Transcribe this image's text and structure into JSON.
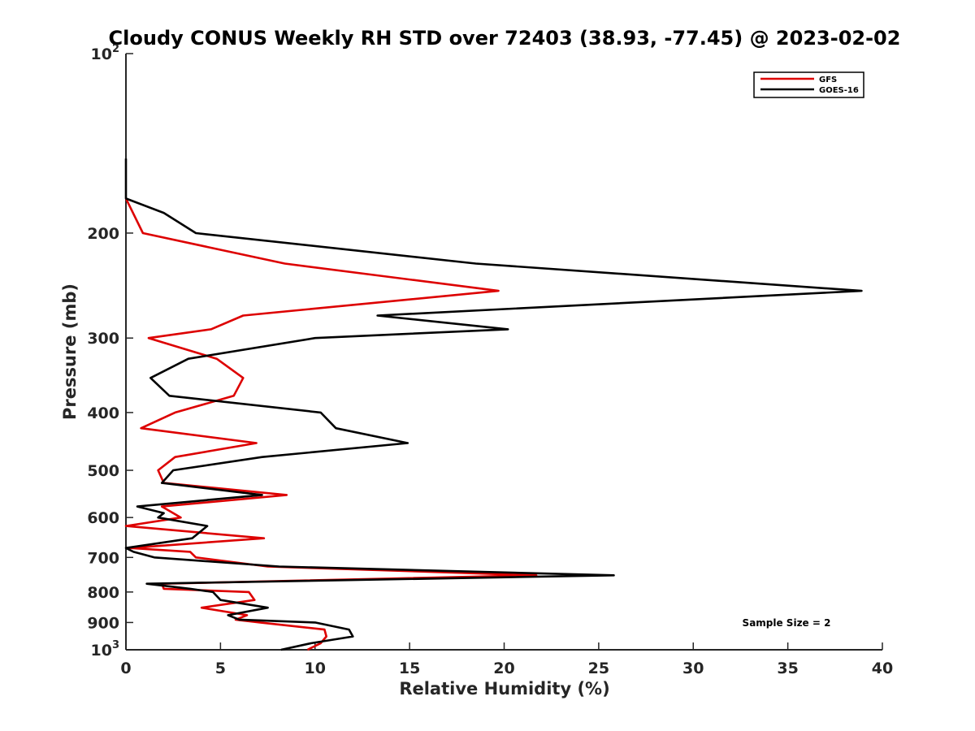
{
  "chart_data": {
    "type": "line",
    "title": "Cloudy CONUS Weekly RH STD over 72403 (38.93, -77.45) @ 2023-02-02",
    "xlabel": "Relative Humidity (%)",
    "ylabel": "Pressure (mb)",
    "xlim": [
      0,
      40
    ],
    "ylim": [
      100,
      1000
    ],
    "yscale": "log",
    "y_reversed": true,
    "x_ticks": [
      0,
      5,
      10,
      15,
      20,
      25,
      30,
      35,
      40
    ],
    "x_tick_labels": [
      "0",
      "5",
      "10",
      "15",
      "20",
      "25",
      "30",
      "35",
      "40"
    ],
    "y_ticks": [
      100,
      200,
      300,
      400,
      500,
      600,
      700,
      800,
      900,
      1000
    ],
    "y_tick_labels": [
      {
        "base": "10",
        "exp": "2"
      },
      {
        "base": "200",
        "exp": ""
      },
      {
        "base": "300",
        "exp": ""
      },
      {
        "base": "400",
        "exp": ""
      },
      {
        "base": "500",
        "exp": ""
      },
      {
        "base": "600",
        "exp": ""
      },
      {
        "base": "700",
        "exp": ""
      },
      {
        "base": "800",
        "exp": ""
      },
      {
        "base": "900",
        "exp": ""
      },
      {
        "base": "10",
        "exp": "3"
      }
    ],
    "grid": false,
    "legend_position": "top-right",
    "annotation": "Sample Size = 2",
    "series": [
      {
        "name": "GFS",
        "color": "#dd0000",
        "points": [
          [
            0,
            175
          ],
          [
            0.9,
            200
          ],
          [
            8.4,
            225
          ],
          [
            19.7,
            250
          ],
          [
            6.2,
            275
          ],
          [
            4.5,
            290
          ],
          [
            1.2,
            300
          ],
          [
            4.8,
            325
          ],
          [
            6.2,
            350
          ],
          [
            5.7,
            375
          ],
          [
            2.6,
            400
          ],
          [
            0.8,
            425
          ],
          [
            6.9,
            450
          ],
          [
            2.6,
            475
          ],
          [
            1.7,
            500
          ],
          [
            2.0,
            525
          ],
          [
            8.5,
            550
          ],
          [
            1.9,
            575
          ],
          [
            2.5,
            590
          ],
          [
            2.9,
            600
          ],
          [
            0,
            620
          ],
          [
            7.3,
            650
          ],
          [
            0.2,
            675
          ],
          [
            3.4,
            685
          ],
          [
            3.7,
            700
          ],
          [
            7.5,
            725
          ],
          [
            21.7,
            750
          ],
          [
            1.9,
            775
          ],
          [
            2.0,
            790
          ],
          [
            6.5,
            800
          ],
          [
            6.8,
            825
          ],
          [
            4.0,
            850
          ],
          [
            6.4,
            875
          ],
          [
            5.8,
            890
          ],
          [
            7.1,
            900
          ],
          [
            10.5,
            925
          ],
          [
            10.6,
            950
          ],
          [
            10.3,
            975
          ],
          [
            9.6,
            1000
          ]
        ]
      },
      {
        "name": "GOES-16",
        "color": "#000000",
        "points": [
          [
            0,
            150
          ],
          [
            0,
            175
          ],
          [
            2.0,
            185
          ],
          [
            3.7,
            200
          ],
          [
            18.5,
            225
          ],
          [
            38.9,
            250
          ],
          [
            13.3,
            275
          ],
          [
            20.2,
            290
          ],
          [
            10.0,
            300
          ],
          [
            3.3,
            325
          ],
          [
            1.3,
            350
          ],
          [
            2.3,
            375
          ],
          [
            10.3,
            400
          ],
          [
            11.1,
            425
          ],
          [
            14.9,
            450
          ],
          [
            7.2,
            475
          ],
          [
            2.5,
            500
          ],
          [
            1.9,
            525
          ],
          [
            7.2,
            550
          ],
          [
            0.6,
            575
          ],
          [
            2.0,
            590
          ],
          [
            1.7,
            600
          ],
          [
            4.3,
            620
          ],
          [
            3.5,
            650
          ],
          [
            0,
            675
          ],
          [
            0.4,
            685
          ],
          [
            1.5,
            700
          ],
          [
            8.1,
            725
          ],
          [
            25.8,
            750
          ],
          [
            1.1,
            775
          ],
          [
            3.4,
            790
          ],
          [
            4.6,
            800
          ],
          [
            5.0,
            825
          ],
          [
            7.5,
            850
          ],
          [
            5.4,
            875
          ],
          [
            6.0,
            890
          ],
          [
            10.0,
            900
          ],
          [
            11.8,
            925
          ],
          [
            12.0,
            950
          ],
          [
            9.8,
            975
          ],
          [
            8.2,
            1000
          ]
        ]
      }
    ]
  }
}
